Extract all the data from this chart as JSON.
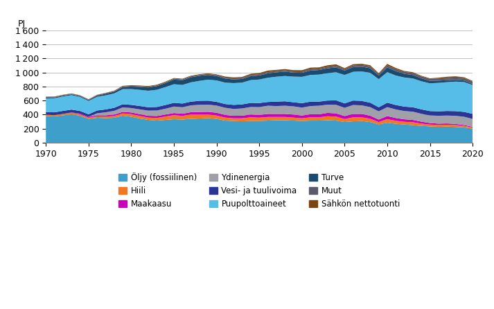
{
  "years": [
    1970,
    1971,
    1972,
    1973,
    1974,
    1975,
    1976,
    1977,
    1978,
    1979,
    1980,
    1981,
    1982,
    1983,
    1984,
    1985,
    1986,
    1987,
    1988,
    1989,
    1990,
    1991,
    1992,
    1993,
    1994,
    1995,
    1996,
    1997,
    1998,
    1999,
    2000,
    2001,
    2002,
    2003,
    2004,
    2005,
    2006,
    2007,
    2008,
    2009,
    2010,
    2011,
    2012,
    2013,
    2014,
    2015,
    2016,
    2017,
    2018,
    2019,
    2020
  ],
  "series": {
    "Öljy (fossiilinen)": [
      380,
      375,
      390,
      405,
      385,
      340,
      355,
      350,
      355,
      385,
      370,
      345,
      325,
      315,
      325,
      335,
      330,
      340,
      345,
      350,
      340,
      315,
      310,
      305,
      310,
      310,
      315,
      320,
      320,
      315,
      310,
      315,
      315,
      320,
      315,
      295,
      305,
      310,
      295,
      262,
      285,
      270,
      260,
      250,
      240,
      232,
      226,
      230,
      225,
      218,
      200
    ],
    "Hiili": [
      18,
      18,
      20,
      22,
      20,
      16,
      20,
      22,
      26,
      32,
      38,
      36,
      33,
      38,
      48,
      58,
      52,
      62,
      57,
      52,
      47,
      43,
      38,
      43,
      52,
      47,
      52,
      47,
      47,
      43,
      38,
      47,
      47,
      57,
      57,
      42,
      57,
      52,
      47,
      32,
      52,
      42,
      38,
      42,
      32,
      27,
      27,
      27,
      27,
      22,
      17
    ],
    "Maakaasu": [
      0,
      0,
      0,
      4,
      9,
      13,
      16,
      18,
      20,
      23,
      23,
      26,
      26,
      28,
      28,
      30,
      31,
      33,
      36,
      38,
      40,
      38,
      36,
      38,
      40,
      38,
      43,
      43,
      43,
      43,
      40,
      43,
      43,
      48,
      46,
      43,
      48,
      48,
      43,
      36,
      43,
      40,
      36,
      33,
      28,
      22,
      19,
      18,
      16,
      13,
      10
    ],
    "Ydinenergia": [
      0,
      0,
      0,
      0,
      0,
      0,
      28,
      43,
      53,
      63,
      63,
      68,
      73,
      78,
      83,
      92,
      92,
      97,
      102,
      102,
      102,
      102,
      97,
      102,
      107,
      112,
      117,
      112,
      117,
      117,
      112,
      117,
      122,
      117,
      122,
      117,
      127,
      122,
      122,
      117,
      127,
      122,
      117,
      117,
      112,
      107,
      112,
      112,
      115,
      117,
      112
    ],
    "Vesi- ja tuulivoima": [
      38,
      40,
      43,
      41,
      38,
      36,
      40,
      41,
      43,
      45,
      45,
      48,
      48,
      50,
      53,
      53,
      53,
      53,
      56,
      56,
      53,
      53,
      58,
      58,
      58,
      58,
      53,
      63,
      63,
      58,
      63,
      63,
      58,
      58,
      63,
      63,
      63,
      63,
      63,
      58,
      63,
      63,
      63,
      63,
      63,
      63,
      63,
      65,
      67,
      69,
      72
    ],
    "Puupolttoaineet": [
      195,
      200,
      205,
      205,
      200,
      190,
      195,
      200,
      205,
      215,
      225,
      230,
      235,
      245,
      255,
      265,
      265,
      275,
      285,
      300,
      305,
      305,
      310,
      310,
      325,
      335,
      345,
      355,
      360,
      365,
      375,
      380,
      385,
      390,
      400,
      405,
      410,
      420,
      425,
      400,
      435,
      420,
      415,
      410,
      400,
      395,
      405,
      410,
      420,
      425,
      410
    ],
    "Turve": [
      12,
      12,
      12,
      12,
      12,
      12,
      17,
      22,
      25,
      29,
      35,
      42,
      47,
      52,
      57,
      67,
      67,
      72,
      72,
      67,
      62,
      57,
      52,
      52,
      55,
      57,
      62,
      62,
      62,
      57,
      57,
      62,
      65,
      69,
      69,
      62,
      67,
      67,
      65,
      52,
      67,
      62,
      52,
      49,
      42,
      35,
      32,
      29,
      25,
      22,
      15
    ],
    "Muut": [
      8,
      8,
      8,
      8,
      8,
      8,
      8,
      10,
      10,
      10,
      11,
      11,
      12,
      12,
      12,
      13,
      13,
      14,
      14,
      15,
      16,
      16,
      16,
      16,
      17,
      18,
      18,
      18,
      19,
      19,
      20,
      20,
      20,
      21,
      22,
      23,
      24,
      25,
      26,
      26,
      28,
      28,
      28,
      28,
      28,
      28,
      30,
      31,
      33,
      34,
      36
    ],
    "Sähkön nettotuonti": [
      4,
      5,
      5,
      5,
      4,
      4,
      4,
      4,
      4,
      8,
      8,
      8,
      8,
      8,
      8,
      8,
      8,
      8,
      8,
      8,
      8,
      13,
      13,
      13,
      17,
      17,
      22,
      17,
      17,
      17,
      17,
      22,
      17,
      22,
      22,
      12,
      17,
      17,
      17,
      8,
      22,
      17,
      12,
      12,
      8,
      8,
      12,
      17,
      17,
      12,
      8
    ]
  },
  "stack_order": [
    "Öljy (fossiilinen)",
    "Hiili",
    "Maakaasu",
    "Ydinenergia",
    "Vesi- ja tuulivoima",
    "Puupolttoaineet",
    "Turve",
    "Muut",
    "Sähkön nettotuonti"
  ],
  "colors": {
    "Öljy (fossiilinen)": "#3d9fca",
    "Hiili": "#f07820",
    "Maakaasu": "#cc00bb",
    "Ydinenergia": "#a0a0a8",
    "Vesi- ja tuulivoima": "#2b3594",
    "Puupolttoaineet": "#55bde8",
    "Turve": "#1a4a6e",
    "Muut": "#5a5a6a",
    "Sähkön nettotuonti": "#7a4510"
  },
  "legend_order": [
    "Öljy (fossiilinen)",
    "Hiili",
    "Maakaasu",
    "Ydinenergia",
    "Vesi- ja tuulivoima",
    "Puupolttoaineet",
    "Turve",
    "Muut",
    "Sähkön nettotuonti"
  ],
  "ylabel": "PJ",
  "ylim": [
    0,
    1600
  ],
  "yticks": [
    0,
    200,
    400,
    600,
    800,
    1000,
    1200,
    1400,
    1600
  ],
  "xticks": [
    1970,
    1975,
    1980,
    1985,
    1990,
    1995,
    2000,
    2005,
    2010,
    2015,
    2020
  ],
  "legend_fontsize": 8.5,
  "tick_fontsize": 9
}
